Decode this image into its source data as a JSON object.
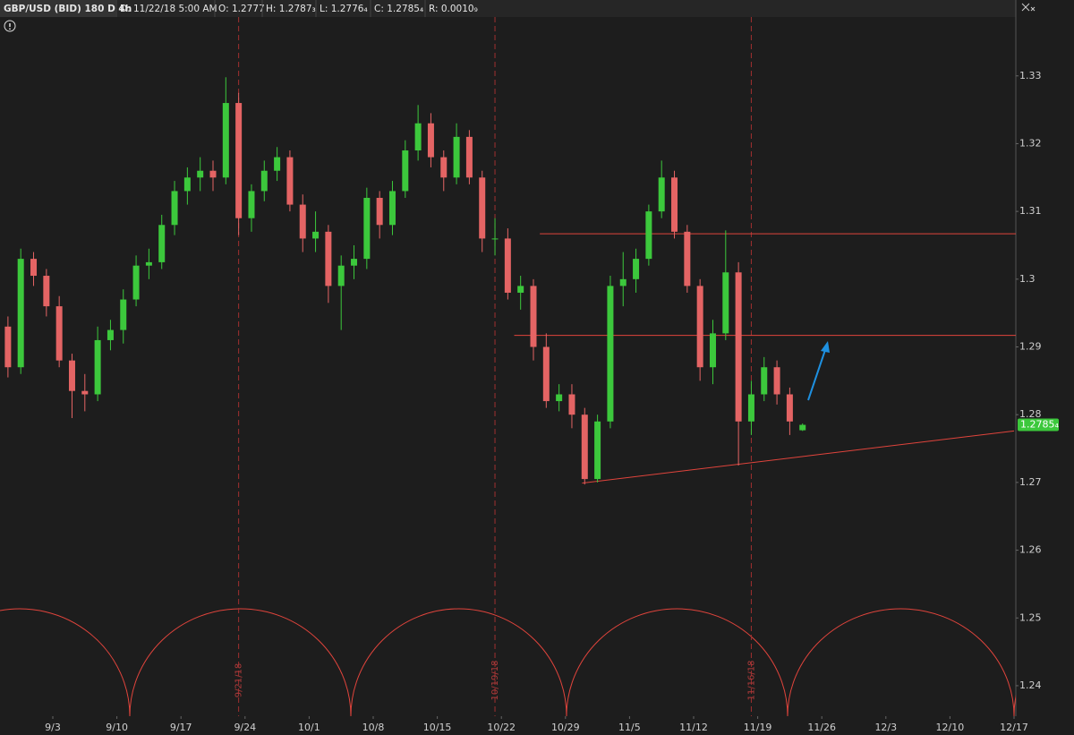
{
  "chart_data": {
    "type": "candlestick",
    "title": "GBP/USD (BID) 180 D 4h",
    "info": [
      "D: 11/22/18 5:00 AM",
      "O: 1.2777",
      "H: 1.2787₃",
      "L: 1.2776₄",
      "C: 1.2785₄",
      "R: 0.0010₉"
    ],
    "x": [
      "8/28",
      "8/29",
      "8/30",
      "8/31",
      "9/3",
      "9/4",
      "9/5",
      "9/6",
      "9/7",
      "9/10",
      "9/11",
      "9/12",
      "9/13",
      "9/14",
      "9/17",
      "9/18",
      "9/19",
      "9/20",
      "9/21",
      "9/24",
      "9/25",
      "9/26",
      "9/27",
      "9/28",
      "10/1",
      "10/2",
      "10/3",
      "10/4",
      "10/5",
      "10/8",
      "10/9",
      "10/10",
      "10/11",
      "10/12",
      "10/15",
      "10/16",
      "10/17",
      "10/18",
      "10/19",
      "10/22",
      "10/23",
      "10/24",
      "10/25",
      "10/26",
      "10/29",
      "10/30",
      "10/31",
      "11/1",
      "11/2",
      "11/5",
      "11/6",
      "11/7",
      "11/8",
      "11/9",
      "11/12",
      "11/13",
      "11/14",
      "11/15",
      "11/16",
      "11/19",
      "11/20",
      "11/21",
      "11/22"
    ],
    "open": [
      1.293,
      1.287,
      1.303,
      1.3005,
      1.296,
      1.288,
      1.2835,
      1.283,
      1.291,
      1.2925,
      1.297,
      1.302,
      1.3025,
      1.308,
      1.313,
      1.315,
      1.316,
      1.315,
      1.326,
      1.309,
      1.313,
      1.316,
      1.318,
      1.311,
      1.306,
      1.307,
      1.299,
      1.302,
      1.303,
      1.312,
      1.308,
      1.313,
      1.319,
      1.323,
      1.318,
      1.315,
      1.321,
      1.315,
      1.306,
      1.306,
      1.298,
      1.299,
      1.29,
      1.282,
      1.283,
      1.28,
      1.2705,
      1.279,
      1.299,
      1.3,
      1.303,
      1.31,
      1.315,
      1.307,
      1.299,
      1.287,
      1.292,
      1.301,
      1.279,
      1.283,
      1.287,
      1.283,
      1.2777
    ],
    "high": [
      1.2945,
      1.3045,
      1.304,
      1.3015,
      1.2975,
      1.289,
      1.286,
      1.293,
      1.294,
      1.2985,
      1.3035,
      1.3045,
      1.3095,
      1.3145,
      1.3165,
      1.318,
      1.3175,
      1.3298,
      1.3275,
      1.314,
      1.3175,
      1.3195,
      1.319,
      1.3125,
      1.31,
      1.308,
      1.3035,
      1.305,
      1.3135,
      1.313,
      1.3145,
      1.3205,
      1.3257,
      1.3245,
      1.319,
      1.323,
      1.322,
      1.316,
      1.309,
      1.3075,
      1.3005,
      1.3,
      1.292,
      1.2845,
      1.2845,
      1.281,
      1.28,
      1.3005,
      1.304,
      1.3045,
      1.311,
      1.3175,
      1.316,
      1.308,
      1.3,
      1.294,
      1.3072,
      1.3025,
      1.285,
      1.2885,
      1.288,
      1.284,
      1.2787
    ],
    "low": [
      1.2855,
      1.286,
      1.299,
      1.2945,
      1.287,
      1.2795,
      1.2805,
      1.282,
      1.2895,
      1.2905,
      1.296,
      1.3,
      1.3015,
      1.3065,
      1.311,
      1.313,
      1.313,
      1.314,
      1.3065,
      1.307,
      1.3115,
      1.3145,
      1.31,
      1.304,
      1.304,
      1.2965,
      1.2925,
      1.3,
      1.3015,
      1.306,
      1.3065,
      1.312,
      1.3175,
      1.3165,
      1.313,
      1.314,
      1.314,
      1.304,
      1.3035,
      1.297,
      1.2955,
      1.288,
      1.281,
      1.2805,
      1.278,
      1.2697,
      1.27,
      1.278,
      1.296,
      1.298,
      1.302,
      1.309,
      1.306,
      1.298,
      1.285,
      1.2845,
      1.291,
      1.2725,
      1.277,
      1.282,
      1.2815,
      1.277,
      1.2776
    ],
    "close": [
      1.287,
      1.303,
      1.3005,
      1.296,
      1.288,
      1.2835,
      1.283,
      1.291,
      1.2925,
      1.297,
      1.302,
      1.3025,
      1.308,
      1.313,
      1.315,
      1.316,
      1.315,
      1.326,
      1.309,
      1.313,
      1.316,
      1.318,
      1.311,
      1.306,
      1.307,
      1.299,
      1.302,
      1.303,
      1.312,
      1.308,
      1.313,
      1.319,
      1.323,
      1.318,
      1.315,
      1.321,
      1.315,
      1.306,
      1.306,
      1.298,
      1.299,
      1.29,
      1.282,
      1.283,
      1.28,
      1.2705,
      1.279,
      1.299,
      1.3,
      1.303,
      1.31,
      1.315,
      1.307,
      1.299,
      1.287,
      1.292,
      1.301,
      1.279,
      1.283,
      1.287,
      1.283,
      1.279,
      1.2785
    ],
    "up_color": "#3cc83c",
    "down_color": "#e46464",
    "line_color": "#e0443c",
    "arrow_color": "#1e90e0",
    "ylim": [
      1.2355,
      1.3412
    ],
    "yticks": [
      1.24,
      1.25,
      1.26,
      1.27,
      1.28,
      1.29,
      1.3,
      1.31,
      1.32,
      1.33
    ],
    "xticks": [
      "9/3",
      "9/10",
      "9/17",
      "9/24",
      "10/1",
      "10/8",
      "10/15",
      "10/22",
      "10/29",
      "11/5",
      "11/12",
      "11/19",
      "11/26",
      "12/3",
      "12/10",
      "12/17"
    ],
    "last_price": {
      "value": 1.2785,
      "label": "1.2785₄"
    },
    "levels": [
      {
        "value": 1.3067,
        "from": "10/25"
      },
      {
        "value": 1.2917,
        "from": "10/23"
      }
    ],
    "trendline": {
      "x": [
        "10/30",
        "12/17"
      ],
      "y": [
        1.2699,
        1.2776
      ]
    },
    "cycle_dates": [
      "9/21/18",
      "10/19/18",
      "11/16/18"
    ]
  }
}
